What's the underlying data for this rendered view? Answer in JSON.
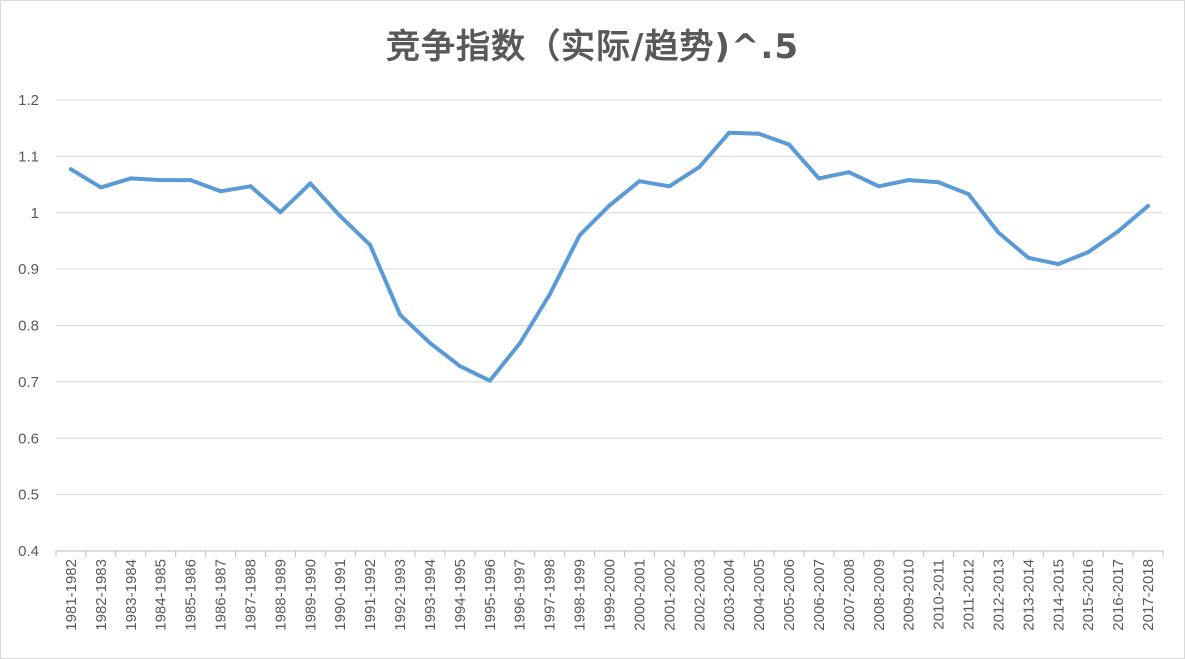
{
  "chart_data": {
    "type": "line",
    "title": "竞争指数（实际/趋势)^.5",
    "xlabel": "",
    "ylabel": "",
    "ylim": [
      0.4,
      1.2
    ],
    "y_ticks": [
      "0.4",
      "0.5",
      "0.6",
      "0.7",
      "0.8",
      "0.9",
      "1",
      "1.1",
      "1.2"
    ],
    "y_tick_values": [
      0.4,
      0.5,
      0.6,
      0.7,
      0.8,
      0.9,
      1.0,
      1.1,
      1.2
    ],
    "grid": true,
    "legend": "none",
    "categories": [
      "1981-1982",
      "1982-1983",
      "1983-1984",
      "1984-1985",
      "1985-1986",
      "1986-1987",
      "1987-1988",
      "1988-1989",
      "1989-1990",
      "1990-1991",
      "1991-1992",
      "1992-1993",
      "1993-1994",
      "1994-1995",
      "1995-1996",
      "1996-1997",
      "1997-1998",
      "1998-1999",
      "1999-2000",
      "2000-2001",
      "2001-2002",
      "2002-2003",
      "2003-2004",
      "2004-2005",
      "2005-2006",
      "2006-2007",
      "2007-2008",
      "2008-2009",
      "2009-2010",
      "2010-2011",
      "2011-2012",
      "2012-2013",
      "2013-2014",
      "2014-2015",
      "2015-2016",
      "2016-2017",
      "2017-2018"
    ],
    "series": [
      {
        "color": "#5b9bd5",
        "values": [
          1.077,
          1.045,
          1.061,
          1.058,
          1.058,
          1.038,
          1.047,
          1.001,
          1.052,
          0.994,
          0.943,
          0.819,
          0.769,
          0.728,
          0.702,
          0.768,
          0.855,
          0.96,
          1.013,
          1.056,
          1.047,
          1.081,
          1.142,
          1.14,
          1.121,
          1.061,
          1.072,
          1.047,
          1.058,
          1.054,
          1.033,
          0.965,
          0.92,
          0.909,
          0.93,
          0.967,
          1.012
        ]
      }
    ]
  }
}
